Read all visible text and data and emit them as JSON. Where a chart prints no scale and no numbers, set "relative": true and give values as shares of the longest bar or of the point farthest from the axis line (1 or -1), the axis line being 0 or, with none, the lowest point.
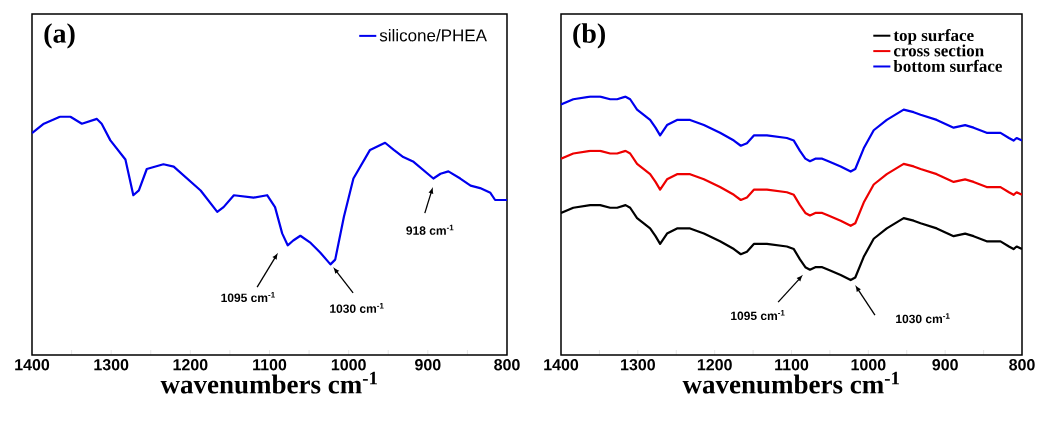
{
  "chart_data": [
    {
      "type": "line",
      "title": "(a)",
      "xlabel": "wavenumbers cm$^{-1}$",
      "relative": true,
      "legend": "top right",
      "marker": "none",
      "line_style": "solid",
      "xlim": [
        1400,
        800
      ],
      "xticks": [
        1400,
        1300,
        1200,
        1100,
        1000,
        900,
        800
      ],
      "x": [
        1400,
        1385,
        1364,
        1352,
        1337,
        1318,
        1312,
        1301,
        1282,
        1272,
        1265,
        1255,
        1234,
        1221,
        1187,
        1166,
        1158,
        1145,
        1120,
        1103,
        1093,
        1084,
        1077,
        1070,
        1061,
        1048,
        1036,
        1023,
        1017,
        1006,
        994,
        973,
        954,
        943,
        931,
        918,
        893,
        884,
        874,
        859,
        846,
        834,
        821,
        815,
        811,
        800
      ],
      "series": [
        {
          "name": "silicone/PHEA",
          "color": "#0000ee",
          "values": [
            0.93,
            0.97,
            1.0,
            1.0,
            0.97,
            0.99,
            0.97,
            0.9,
            0.82,
            0.67,
            0.69,
            0.78,
            0.8,
            0.79,
            0.69,
            0.6,
            0.62,
            0.67,
            0.66,
            0.67,
            0.62,
            0.51,
            0.46,
            0.48,
            0.5,
            0.47,
            0.43,
            0.38,
            0.4,
            0.58,
            0.74,
            0.86,
            0.89,
            0.86,
            0.83,
            0.81,
            0.74,
            0.76,
            0.77,
            0.74,
            0.71,
            0.7,
            0.68,
            0.65,
            0.65,
            0.65
          ]
        }
      ],
      "annotations": [
        "1095 cm$^{-1}$",
        "1030 cm$^{-1}$",
        "918 cm$^{-1}$"
      ]
    },
    {
      "type": "line",
      "title": "(b)",
      "xlabel": "wavenumbers cm$^{-1}$",
      "relative": true,
      "legend": "top right",
      "marker": "none",
      "line_style": "solid",
      "xlim": [
        1400,
        800
      ],
      "xticks": [
        1400,
        1300,
        1200,
        1100,
        1000,
        900,
        800
      ],
      "x": [
        1400,
        1384,
        1362,
        1349,
        1336,
        1327,
        1316,
        1310,
        1301,
        1284,
        1277,
        1271,
        1262,
        1249,
        1232,
        1214,
        1193,
        1175,
        1166,
        1158,
        1149,
        1132,
        1106,
        1097,
        1089,
        1082,
        1076,
        1069,
        1060,
        1052,
        1036,
        1023,
        1017,
        1006,
        993,
        976,
        954,
        941,
        932,
        911,
        889,
        874,
        863,
        846,
        828,
        817,
        811,
        807,
        800
      ],
      "series": [
        {
          "name": "top surface",
          "color": "#000000",
          "values": [
            0.55,
            0.57,
            0.58,
            0.58,
            0.57,
            0.57,
            0.58,
            0.57,
            0.53,
            0.49,
            0.46,
            0.43,
            0.47,
            0.49,
            0.49,
            0.47,
            0.44,
            0.41,
            0.39,
            0.4,
            0.43,
            0.43,
            0.42,
            0.41,
            0.37,
            0.34,
            0.33,
            0.34,
            0.34,
            0.33,
            0.31,
            0.29,
            0.3,
            0.38,
            0.45,
            0.49,
            0.53,
            0.52,
            0.51,
            0.49,
            0.46,
            0.47,
            0.46,
            0.44,
            0.44,
            0.42,
            0.41,
            0.42,
            0.41
          ]
        },
        {
          "name": "cross section",
          "color": "#ee0000",
          "values": [
            0.76,
            0.78,
            0.79,
            0.79,
            0.78,
            0.78,
            0.79,
            0.78,
            0.74,
            0.7,
            0.67,
            0.64,
            0.68,
            0.7,
            0.7,
            0.68,
            0.65,
            0.62,
            0.6,
            0.61,
            0.64,
            0.64,
            0.63,
            0.62,
            0.58,
            0.55,
            0.54,
            0.55,
            0.55,
            0.54,
            0.52,
            0.5,
            0.51,
            0.59,
            0.66,
            0.7,
            0.74,
            0.73,
            0.72,
            0.7,
            0.67,
            0.68,
            0.67,
            0.65,
            0.65,
            0.63,
            0.62,
            0.63,
            0.62
          ]
        },
        {
          "name": "bottom surface",
          "color": "#0000ee",
          "values": [
            0.97,
            0.99,
            1.0,
            1.0,
            0.99,
            0.99,
            1.0,
            0.99,
            0.95,
            0.91,
            0.88,
            0.85,
            0.89,
            0.91,
            0.91,
            0.89,
            0.86,
            0.83,
            0.81,
            0.82,
            0.85,
            0.85,
            0.84,
            0.83,
            0.79,
            0.76,
            0.75,
            0.76,
            0.76,
            0.75,
            0.73,
            0.71,
            0.72,
            0.8,
            0.87,
            0.91,
            0.95,
            0.94,
            0.93,
            0.91,
            0.88,
            0.89,
            0.88,
            0.86,
            0.86,
            0.84,
            0.83,
            0.84,
            0.83
          ]
        }
      ],
      "annotations": [
        "1095 cm$^{-1}$",
        "1030 cm$^{-1}$"
      ]
    }
  ]
}
